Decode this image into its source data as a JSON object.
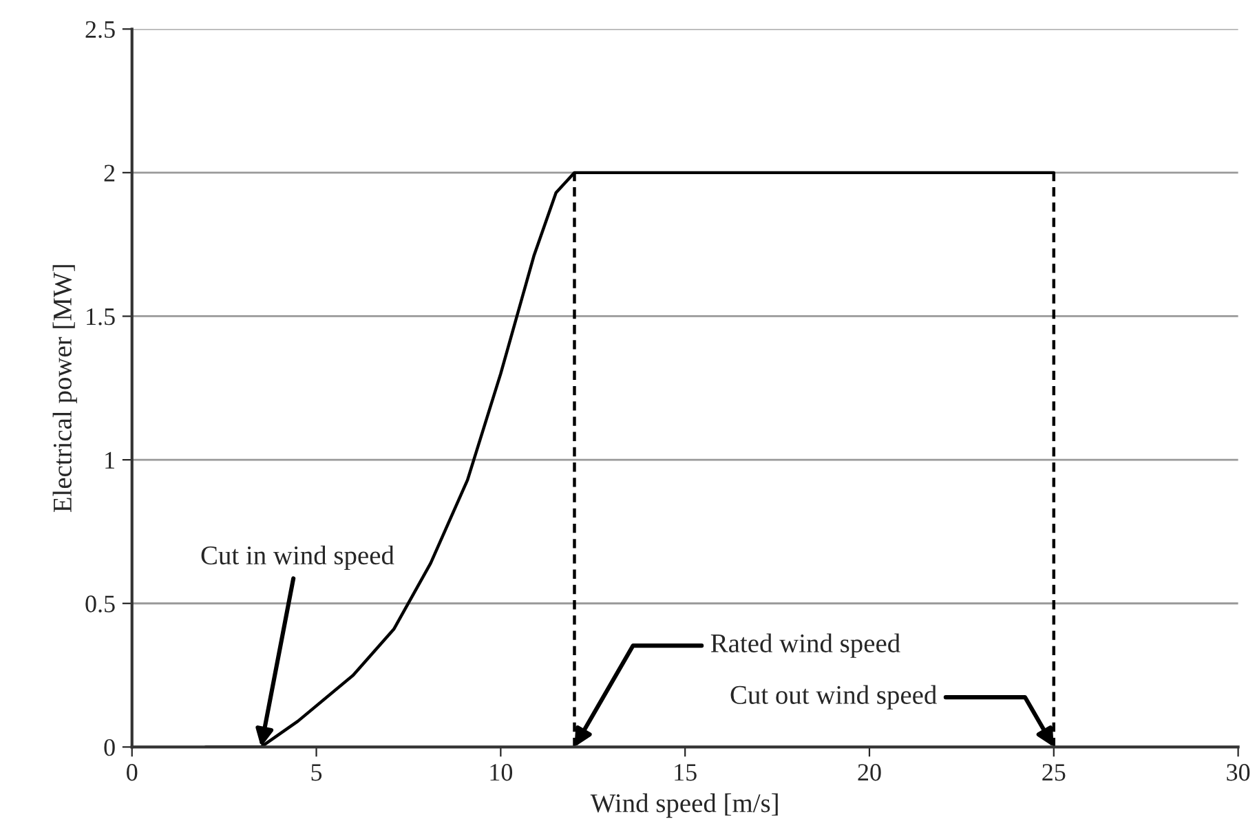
{
  "chart_data": {
    "type": "line",
    "xlabel": "Wind speed [m/s]",
    "ylabel": "Electrical power [MW]",
    "xlim": [
      0,
      30
    ],
    "xticks": [
      0,
      5,
      10,
      15,
      20,
      25,
      30
    ],
    "ylim": [
      0,
      2.5
    ],
    "yticks": [
      0,
      0.5,
      1,
      1.5,
      2,
      2.5
    ],
    "grid": "y",
    "series": [
      {
        "color": "#000000",
        "x": [
          2.0,
          3.5,
          4.5,
          6.0,
          7.1,
          8.1,
          9.1,
          10.0,
          10.9,
          11.5,
          12,
          25
        ],
        "values": [
          0,
          0,
          0.09,
          0.25,
          0.41,
          0.64,
          0.93,
          1.3,
          1.71,
          1.93,
          2,
          2
        ],
        "line_style": "solid"
      },
      {
        "color": "#000000",
        "x": [
          12,
          12
        ],
        "values": [
          0,
          2
        ],
        "line_style": "dashed"
      },
      {
        "color": "#000000",
        "x": [
          25,
          25
        ],
        "values": [
          0,
          2
        ],
        "line_style": "dashed"
      }
    ],
    "annotations": [
      {
        "text": "Cut in wind speed",
        "x": 3.5,
        "y": 0
      },
      {
        "text": "Rated wind speed",
        "x": 12,
        "y": 0
      },
      {
        "text": "Cut out wind speed",
        "x": 25,
        "y": 0
      }
    ]
  }
}
